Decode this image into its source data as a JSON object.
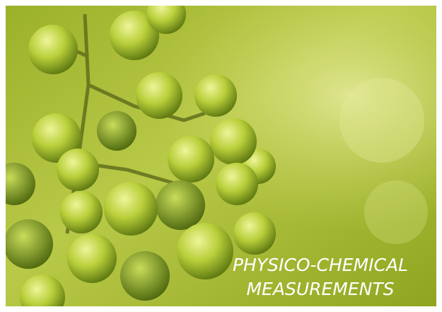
{
  "caption": {
    "lines": [
      "PHYSICO-CHEMICAL",
      "MEASUREMENTS"
    ]
  }
}
